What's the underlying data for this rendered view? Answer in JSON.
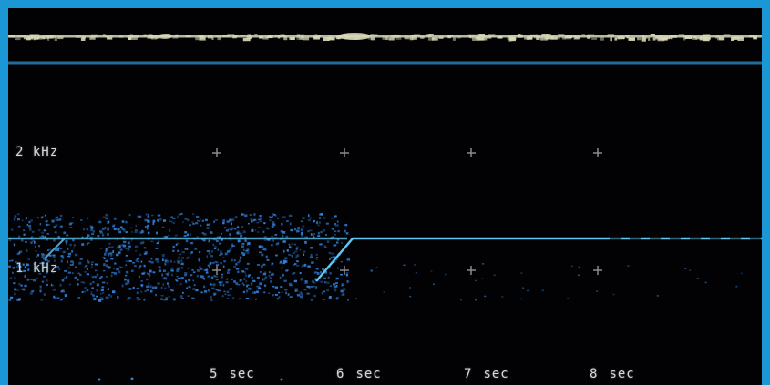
{
  "frequency_labels": {
    "f2": "2 kHz",
    "f1": "1 kHz"
  },
  "time_labels": [
    {
      "value": "5",
      "unit": "sec"
    },
    {
      "value": "6",
      "unit": "sec"
    },
    {
      "value": "7",
      "unit": "sec"
    },
    {
      "value": "8",
      "unit": "sec"
    }
  ],
  "colors": {
    "frame": "#1a97d4",
    "background": "#020204",
    "reference_band": "#d8d8b8",
    "separator_line": "#1f6d97",
    "signal": "#5fc6f0",
    "noise": "#2e7fd8",
    "grid_marks": "#8a8a8a"
  }
}
